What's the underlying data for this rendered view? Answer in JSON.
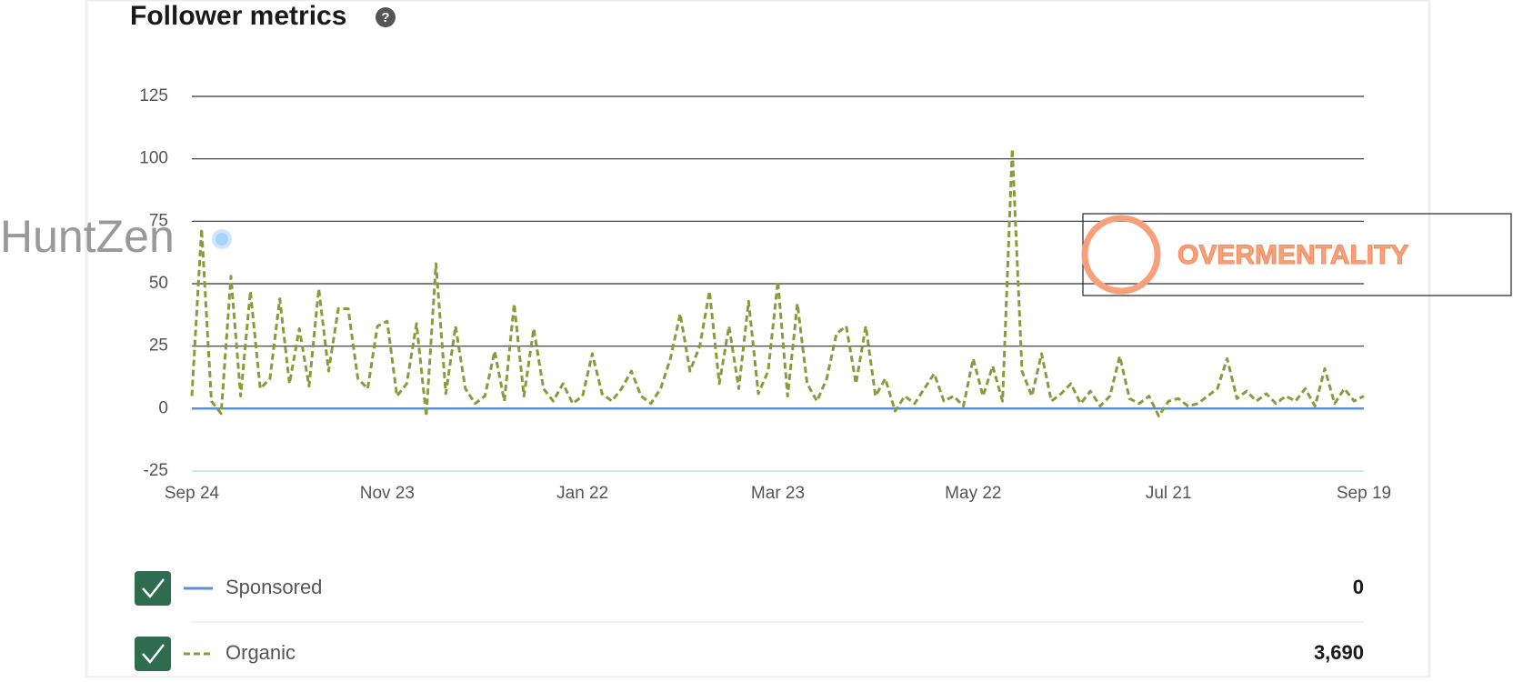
{
  "chart_data": {
    "type": "line",
    "title": "Follower metrics",
    "xlim": [
      0,
      360
    ],
    "xticks": [
      {
        "value": 0,
        "label": "Sep 24"
      },
      {
        "value": 60,
        "label": "Nov 23"
      },
      {
        "value": 120,
        "label": "Jan 22"
      },
      {
        "value": 180,
        "label": "Mar 23"
      },
      {
        "value": 240,
        "label": "May 22"
      },
      {
        "value": 300,
        "label": "Jul 21"
      },
      {
        "value": 360,
        "label": "Sep 19"
      }
    ],
    "ylim": [
      -25,
      125
    ],
    "yticks": [
      -25,
      0,
      25,
      50,
      75,
      100,
      125
    ],
    "grid": true,
    "x": [
      0,
      3,
      6,
      9,
      12,
      15,
      18,
      21,
      24,
      27,
      30,
      33,
      36,
      39,
      42,
      45,
      48,
      51,
      54,
      57,
      60,
      63,
      66,
      69,
      72,
      75,
      78,
      81,
      84,
      87,
      90,
      93,
      96,
      99,
      102,
      105,
      108,
      111,
      114,
      117,
      120,
      123,
      126,
      129,
      132,
      135,
      138,
      141,
      144,
      147,
      150,
      153,
      156,
      159,
      162,
      165,
      168,
      171,
      174,
      177,
      180,
      183,
      186,
      189,
      192,
      195,
      198,
      201,
      204,
      207,
      210,
      213,
      216,
      219,
      222,
      225,
      228,
      231,
      234,
      237,
      240,
      243,
      246,
      249,
      252,
      255,
      258,
      261,
      264,
      267,
      270,
      273,
      276,
      279,
      282,
      285,
      288,
      291,
      294,
      297,
      300,
      303,
      306,
      309,
      312,
      315,
      318,
      321,
      324,
      327,
      330,
      333,
      336,
      339,
      342,
      345,
      348,
      351,
      354,
      357,
      360
    ],
    "series": [
      {
        "name": "Sponsored",
        "color": "#5b8fd6",
        "style": "solid",
        "total": "0",
        "values": [
          0,
          0,
          0,
          0,
          0,
          0,
          0,
          0,
          0,
          0,
          0,
          0,
          0,
          0,
          0,
          0,
          0,
          0,
          0,
          0,
          0,
          0,
          0,
          0,
          0,
          0,
          0,
          0,
          0,
          0,
          0,
          0,
          0,
          0,
          0,
          0,
          0,
          0,
          0,
          0,
          0,
          0,
          0,
          0,
          0,
          0,
          0,
          0,
          0,
          0,
          0,
          0,
          0,
          0,
          0,
          0,
          0,
          0,
          0,
          0,
          0,
          0,
          0,
          0,
          0,
          0,
          0,
          0,
          0,
          0,
          0,
          0,
          0,
          0,
          0,
          0,
          0,
          0,
          0,
          0,
          0,
          0,
          0,
          0,
          0,
          0,
          0,
          0,
          0,
          0,
          0,
          0,
          0,
          0,
          0,
          0,
          0,
          0,
          0,
          0,
          0,
          0,
          0,
          0,
          0,
          0,
          0,
          0,
          0,
          0,
          0,
          0,
          0,
          0,
          0,
          0,
          0,
          0,
          0,
          0,
          0
        ]
      },
      {
        "name": "Organic",
        "color": "#8a9a3c",
        "style": "dashed",
        "total": "3,690",
        "values": [
          5,
          72,
          3,
          -2,
          53,
          5,
          47,
          8,
          12,
          44,
          10,
          32,
          9,
          48,
          15,
          40,
          40,
          12,
          8,
          33,
          35,
          5,
          10,
          34,
          -3,
          58,
          6,
          33,
          8,
          2,
          5,
          23,
          3,
          42,
          5,
          32,
          8,
          3,
          10,
          2,
          5,
          22,
          6,
          3,
          8,
          15,
          5,
          2,
          8,
          20,
          38,
          15,
          25,
          47,
          10,
          33,
          8,
          43,
          6,
          15,
          51,
          5,
          42,
          10,
          3,
          12,
          30,
          33,
          10,
          33,
          5,
          12,
          -1,
          5,
          2,
          8,
          14,
          3,
          5,
          1,
          20,
          5,
          17,
          3,
          104,
          15,
          5,
          22,
          3,
          6,
          10,
          2,
          7,
          1,
          5,
          21,
          4,
          2,
          5,
          -3,
          3,
          4,
          1,
          2,
          5,
          8,
          20,
          4,
          7,
          3,
          6,
          2,
          5,
          3,
          8,
          1,
          16,
          2,
          8,
          3,
          5
        ]
      }
    ]
  },
  "watermarks": [
    "HuntZen",
    "OVERMENTALITY"
  ]
}
